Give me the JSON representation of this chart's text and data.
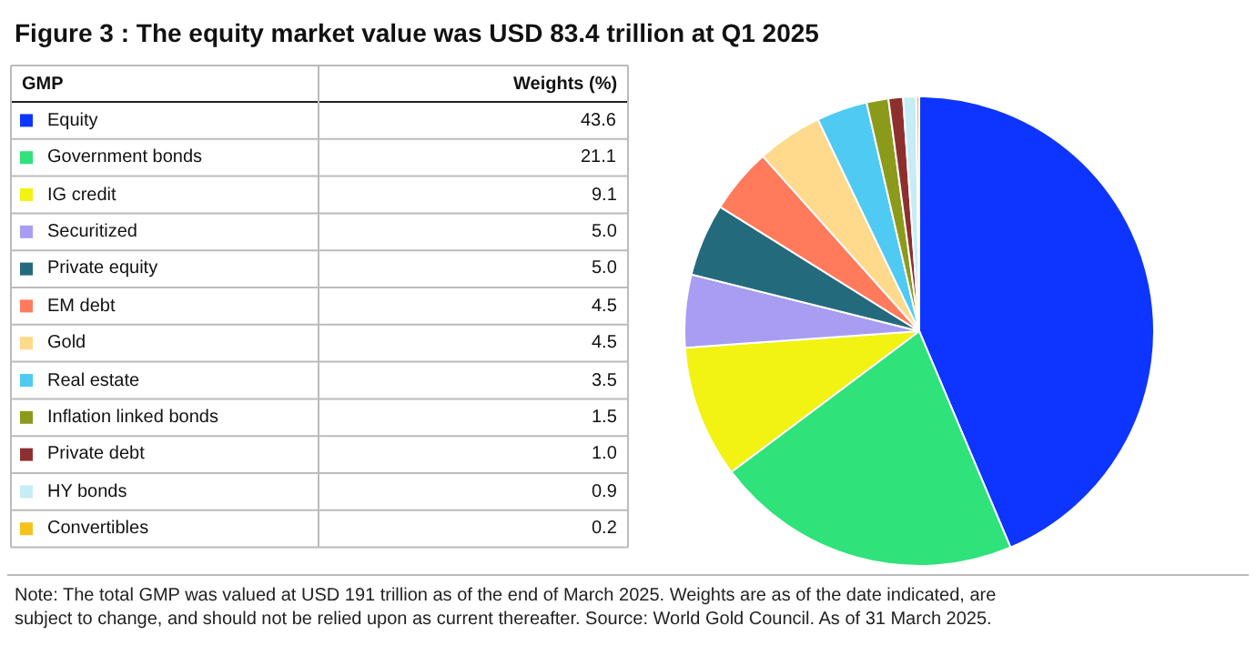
{
  "chart_data": {
    "type": "pie",
    "title": "Figure 3 : The equity market value was USD 83.4 trillion at Q1 2025",
    "legend_title": "GMP",
    "legend": "left",
    "value_labels": [
      "43.6",
      "21.1",
      "9.1",
      "5.0",
      "5.0",
      "4.5",
      "4.5",
      "3.5",
      "1.5",
      "1.0",
      "0.9",
      "0.2"
    ],
    "annotations": [
      "Weights (%)",
      "Note: The total GMP was valued at USD 191 trillion as of the end of March 2025. Weights are as of the date indicated, are subject to change, and should not be relied upon as current thereafter. Source: World Gold Council. As of 31 March 2025."
    ],
    "categories": [
      "Equity",
      "Government bonds",
      "IG credit",
      "Securitized",
      "Private equity",
      "EM debt",
      "Gold",
      "Real estate",
      "Inflation linked bonds",
      "Private debt",
      "HY bonds",
      "Convertibles"
    ],
    "values": [
      43.6,
      21.1,
      9.1,
      5.0,
      5.0,
      4.5,
      4.5,
      3.5,
      1.5,
      1.0,
      0.9,
      0.2
    ],
    "colors": [
      "#0d35ff",
      "#2fe27a",
      "#f2f213",
      "#a99df2",
      "#236a7c",
      "#ff7b5c",
      "#ffd98c",
      "#4fcaf2",
      "#8c9a1c",
      "#8e2f2f",
      "#c6ecf6",
      "#f5c21a"
    ]
  }
}
